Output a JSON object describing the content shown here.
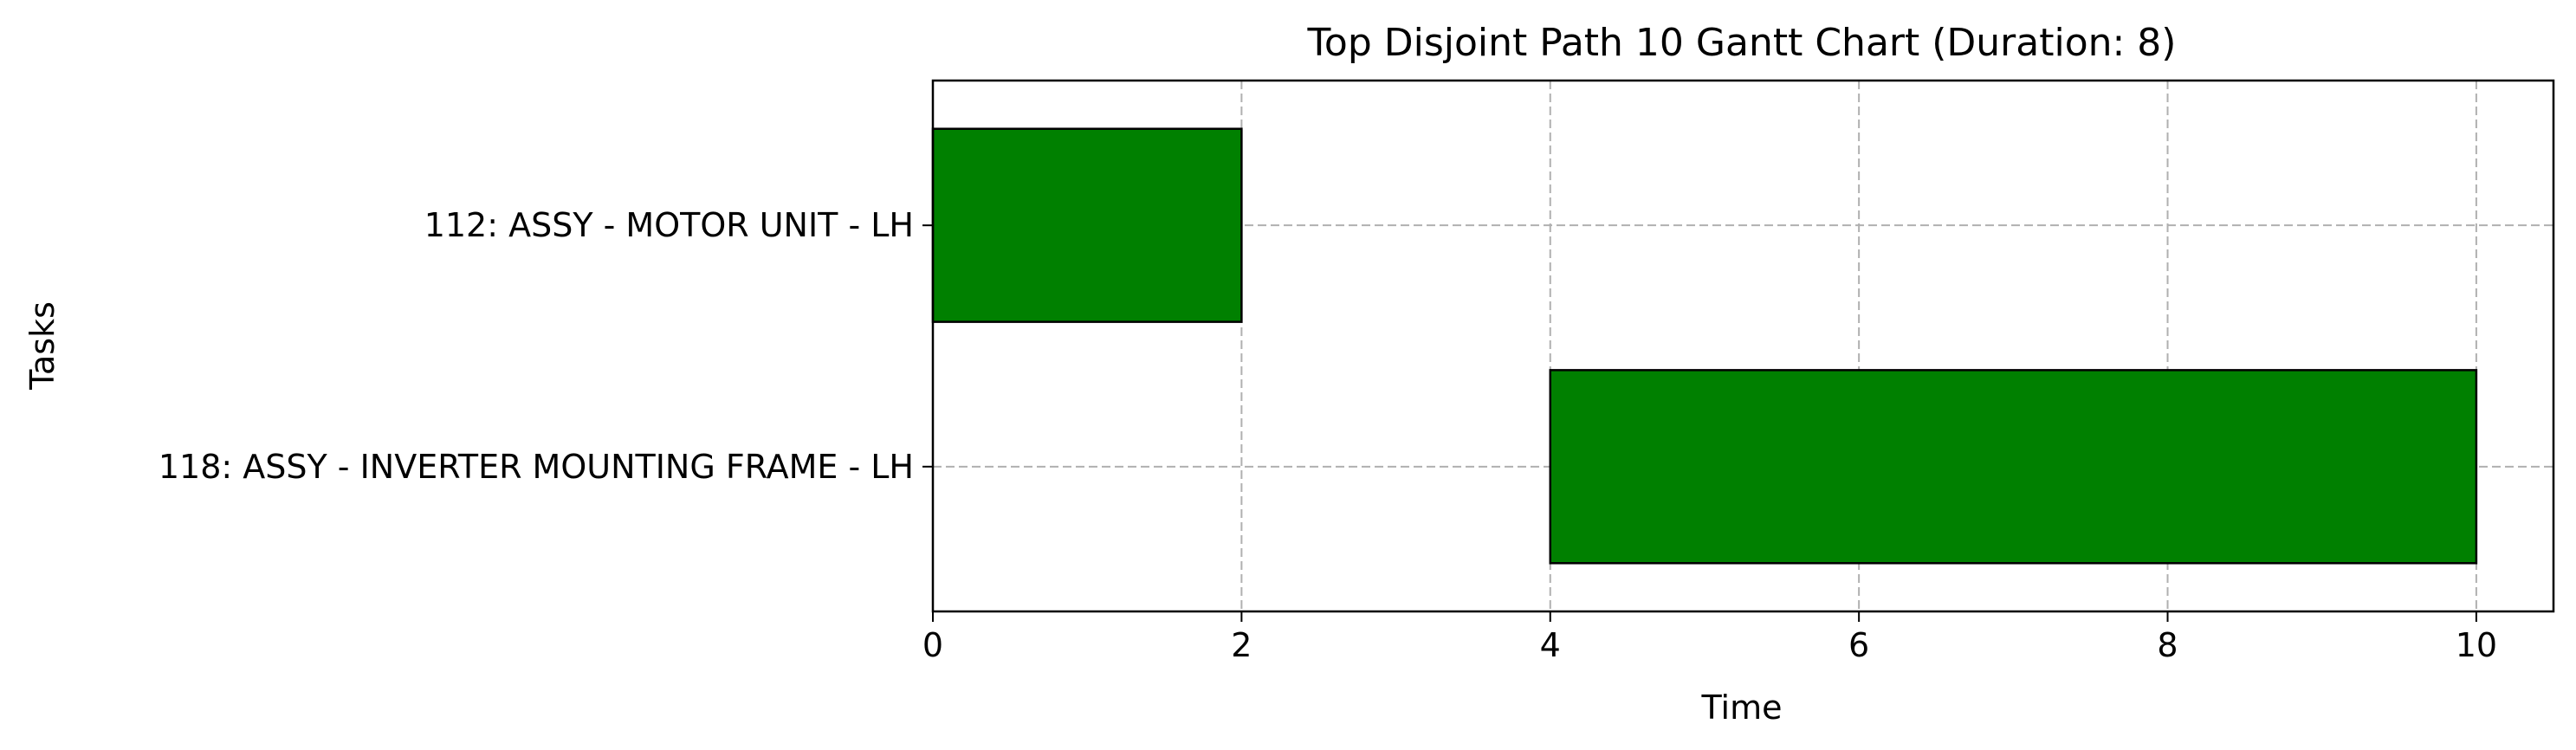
{
  "chart_data": {
    "type": "gantt",
    "title": "Top Disjoint Path 10 Gantt Chart (Duration: 8)",
    "xlabel": "Time",
    "ylabel": "Tasks",
    "xlim": [
      0,
      10.5
    ],
    "xticks": [
      0,
      2,
      4,
      6,
      8,
      10
    ],
    "grid": true,
    "tasks": [
      {
        "label": "112: ASSY - MOTOR UNIT - LH",
        "start": 0,
        "end": 2
      },
      {
        "label": "118: ASSY - INVERTER MOUNTING FRAME - LH",
        "start": 4,
        "end": 10
      }
    ],
    "colors": {
      "bar_fill": "#008000",
      "bar_edge": "#000000",
      "grid": "#b0b0b0"
    }
  }
}
